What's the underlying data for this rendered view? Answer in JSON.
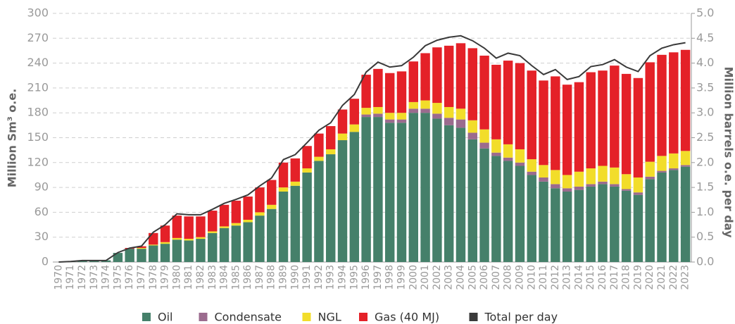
{
  "chart_data": {
    "type": "bar",
    "stacked": true,
    "ylabel": "Million Sm³ o.e.",
    "y2label": "Million barrels o.e. per day",
    "categories": [
      "1970",
      "1971",
      "1972",
      "1973",
      "1974",
      "1975",
      "1976",
      "1977",
      "1978",
      "1979",
      "1980",
      "1981",
      "1982",
      "1983",
      "1984",
      "1985",
      "1986",
      "1987",
      "1988",
      "1989",
      "1990",
      "1991",
      "1992",
      "1993",
      "1994",
      "1995",
      "1996",
      "1997",
      "1998",
      "1999",
      "2000",
      "2001",
      "2002",
      "2003",
      "2004",
      "2005",
      "2006",
      "2007",
      "2008",
      "2009",
      "2010",
      "2011",
      "2012",
      "2013",
      "2014",
      "2015",
      "2016",
      "2017",
      "2018",
      "2019",
      "2020",
      "2021",
      "2022",
      "2023"
    ],
    "series": [
      {
        "name": "Oil",
        "color": "#45806a",
        "type": "bar",
        "values": [
          0,
          0.4,
          1.9,
          1.9,
          2,
          11,
          16,
          16,
          20,
          22,
          27,
          26,
          28,
          35,
          41,
          44,
          48,
          56,
          64,
          85,
          92,
          108,
          122,
          130,
          147,
          157,
          175,
          175,
          168,
          168,
          180,
          180,
          173,
          165,
          162,
          148,
          137,
          128,
          122,
          116,
          105,
          97,
          89,
          85,
          87,
          91,
          94,
          91,
          86,
          81,
          100,
          108,
          111,
          115
        ]
      },
      {
        "name": "Condensate",
        "color": "#9b6b8e",
        "type": "bar",
        "values": [
          0,
          0,
          0,
          0,
          0,
          0,
          0,
          0,
          0,
          0,
          0,
          0,
          0,
          0,
          0,
          0,
          0,
          0,
          0,
          0,
          0,
          0,
          0,
          0,
          0,
          0,
          3,
          4,
          4,
          4,
          5,
          5,
          6,
          9,
          10,
          8,
          7,
          4,
          4,
          4,
          4,
          5,
          5,
          4,
          4,
          3,
          3,
          3,
          2,
          3,
          3,
          2,
          2,
          2
        ]
      },
      {
        "name": "NGL",
        "color": "#f2dd2a",
        "type": "bar",
        "values": [
          0,
          0,
          0,
          0,
          0,
          0,
          0,
          1,
          1,
          2,
          2,
          2,
          2,
          2,
          2,
          3,
          3,
          4,
          5,
          5,
          5,
          5,
          5,
          6,
          8,
          9,
          8,
          8,
          8,
          8,
          8,
          10,
          13,
          13,
          13,
          15,
          16,
          16,
          16,
          16,
          15,
          15,
          17,
          16,
          18,
          19,
          19,
          20,
          18,
          18,
          18,
          18,
          18,
          17
        ]
      },
      {
        "name": "Gas (40 MJ)",
        "color": "#e42128",
        "type": "bar",
        "values": [
          0,
          0,
          0,
          0,
          0,
          0,
          1,
          2,
          14,
          20,
          27,
          27,
          25,
          25,
          26,
          27,
          28,
          30,
          30,
          30,
          28,
          27,
          28,
          28,
          29,
          31,
          40,
          46,
          48,
          50,
          49,
          57,
          67,
          74,
          79,
          87,
          89,
          90,
          101,
          104,
          107,
          102,
          113,
          109,
          108,
          116,
          115,
          123,
          121,
          120,
          120,
          122,
          122,
          122
        ]
      },
      {
        "name": "Total per day",
        "color": "#3a3a3a",
        "type": "line",
        "axis": "y2",
        "values": [
          0,
          0.01,
          0.03,
          0.03,
          0.03,
          0.19,
          0.28,
          0.32,
          0.6,
          0.75,
          0.97,
          0.95,
          0.95,
          1.06,
          1.18,
          1.26,
          1.35,
          1.53,
          1.69,
          2.06,
          2.16,
          2.4,
          2.65,
          2.8,
          3.15,
          3.37,
          3.82,
          4.02,
          3.92,
          3.95,
          4.12,
          4.35,
          4.46,
          4.52,
          4.55,
          4.45,
          4.3,
          4.1,
          4.2,
          4.15,
          3.95,
          3.77,
          3.87,
          3.67,
          3.73,
          3.93,
          3.97,
          4.07,
          3.92,
          3.83,
          4.15,
          4.3,
          4.37,
          4.41
        ]
      }
    ],
    "ylim": [
      0,
      300
    ],
    "yticks": [
      0,
      30,
      60,
      90,
      120,
      150,
      180,
      210,
      240,
      270,
      300
    ],
    "y2lim": [
      0,
      5
    ],
    "y2ticks": [
      {
        "value": 0,
        "label": "0.0"
      },
      0.5,
      {
        "value": 1,
        "label": "1.0"
      },
      1.5,
      {
        "value": 2,
        "label": "2.0"
      },
      2.5,
      {
        "value": 3,
        "label": "3.0"
      },
      3.5,
      {
        "value": 4,
        "label": "4.0"
      },
      4.5,
      {
        "value": 5,
        "label": "5.0"
      }
    ],
    "grid": true,
    "legend": "bottom"
  }
}
